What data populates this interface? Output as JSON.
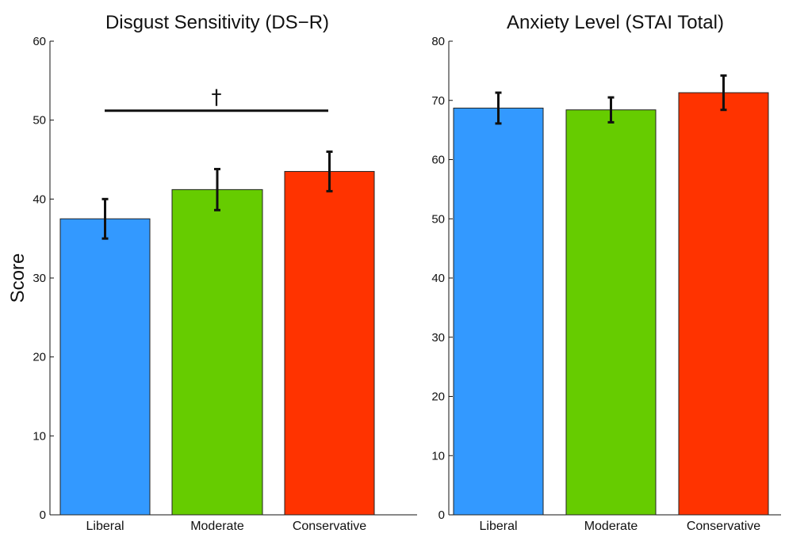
{
  "chart_data": [
    {
      "type": "bar",
      "title": "Disgust Sensitivity (DS−R)",
      "ylabel": "Score",
      "xlabel": "",
      "categories": [
        "Liberal",
        "Moderate",
        "Conservative"
      ],
      "values": [
        37.5,
        41.2,
        43.5
      ],
      "error": [
        2.5,
        2.6,
        2.5
      ],
      "colors": [
        "#3399ff",
        "#66cc00",
        "#ff3300"
      ],
      "ylim": [
        0,
        60
      ],
      "yticks": [
        "0",
        "10",
        "20",
        "30",
        "40",
        "50",
        "60"
      ],
      "significance": {
        "label": "†",
        "from": "Liberal",
        "to": "Conservative",
        "y": 51.2
      },
      "grid": false
    },
    {
      "type": "bar",
      "title": "Anxiety Level (STAI Total)",
      "ylabel": "",
      "xlabel": "",
      "categories": [
        "Liberal",
        "Moderate",
        "Conservative"
      ],
      "values": [
        68.7,
        68.4,
        71.3
      ],
      "error": [
        2.6,
        2.1,
        2.9
      ],
      "colors": [
        "#3399ff",
        "#66cc00",
        "#ff3300"
      ],
      "ylim": [
        0,
        80
      ],
      "yticks": [
        "0",
        "10",
        "20",
        "30",
        "40",
        "50",
        "60",
        "70",
        "80"
      ],
      "grid": false
    }
  ]
}
